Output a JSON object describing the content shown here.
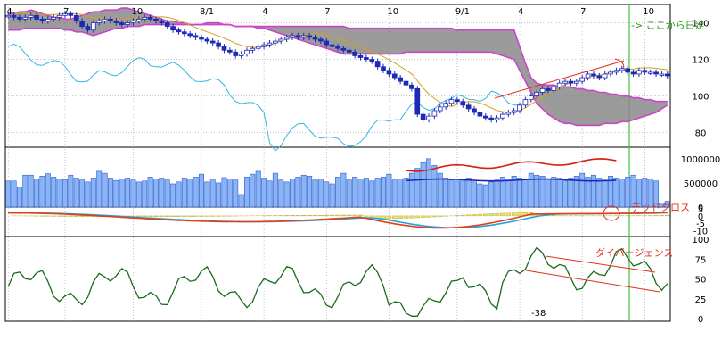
{
  "chart_data": [
    {
      "panel": "price",
      "type": "candlestick",
      "x_ticks": [
        "4",
        "7",
        "10",
        "8/1",
        "4",
        "7",
        "10",
        "9/1",
        "4",
        "7",
        "10"
      ],
      "y_ticks": [
        "140",
        "120",
        "100",
        "80"
      ],
      "ylim": [
        72,
        150
      ],
      "n_bars": 117,
      "close": [
        144,
        143,
        142,
        143,
        144,
        142,
        141,
        142,
        143,
        144,
        145,
        144,
        141,
        138,
        136,
        140,
        141,
        142,
        141,
        140,
        139,
        140,
        141,
        142,
        143,
        142,
        141,
        140,
        138,
        136,
        135,
        134,
        133,
        132,
        131,
        130,
        129,
        127,
        125,
        124,
        122,
        123,
        125,
        126,
        127,
        128,
        129,
        130,
        131,
        132,
        133,
        132,
        133,
        132,
        131,
        130,
        128,
        127,
        126,
        125,
        124,
        122,
        121,
        120,
        119,
        116,
        114,
        112,
        110,
        108,
        106,
        104,
        90,
        87,
        89,
        92,
        94,
        96,
        98,
        97,
        95,
        93,
        91,
        89,
        88,
        87,
        88,
        90,
        91,
        92,
        95,
        98,
        100,
        102,
        104,
        103,
        105,
        107,
        108,
        107,
        108,
        110,
        112,
        111,
        110,
        112,
        113,
        114,
        115,
        113,
        112,
        114,
        113,
        113,
        112,
        112,
        111
      ],
      "cloud_top": [
        145,
        145,
        146,
        146,
        147,
        146,
        145,
        144,
        143,
        143,
        142,
        142,
        143,
        144,
        145,
        146,
        146,
        147,
        147,
        147,
        148,
        148,
        147,
        146,
        145,
        144,
        143,
        142,
        141,
        141,
        140,
        140,
        139,
        139,
        139,
        140,
        140,
        140,
        139,
        139,
        138,
        138,
        138,
        138,
        138,
        138,
        138,
        138,
        138,
        138,
        138,
        138,
        138,
        138,
        138,
        138,
        138,
        138,
        138,
        138,
        137,
        137,
        137,
        137,
        137,
        137,
        137,
        137,
        137,
        137,
        137,
        137,
        137,
        137,
        137,
        137,
        137,
        137,
        137,
        136,
        136,
        136,
        136,
        136,
        136,
        136,
        136,
        136,
        136,
        136,
        127,
        118,
        110,
        107,
        106,
        106,
        106,
        105,
        105,
        105,
        104,
        104,
        103,
        103,
        102,
        102,
        101,
        101,
        100,
        100,
        99,
        99,
        98,
        98,
        97,
        97,
        97
      ],
      "cloud_bottom": [
        136,
        136,
        136,
        137,
        137,
        137,
        137,
        137,
        137,
        137,
        136,
        136,
        135,
        135,
        134,
        133,
        134,
        135,
        136,
        137,
        137,
        138,
        138,
        138,
        139,
        139,
        139,
        139,
        139,
        139,
        139,
        139,
        139,
        139,
        139,
        139,
        139,
        139,
        139,
        139,
        138,
        138,
        138,
        138,
        137,
        137,
        136,
        135,
        134,
        133,
        132,
        131,
        130,
        129,
        128,
        127,
        126,
        125,
        124,
        123,
        123,
        123,
        123,
        123,
        123,
        123,
        123,
        123,
        123,
        123,
        124,
        124,
        124,
        124,
        124,
        124,
        124,
        124,
        124,
        124,
        124,
        124,
        124,
        124,
        124,
        124,
        123,
        122,
        121,
        120,
        114,
        108,
        102,
        96,
        93,
        90,
        88,
        86,
        85,
        85,
        84,
        84,
        84,
        84,
        84,
        85,
        85,
        85,
        86,
        86,
        87,
        88,
        89,
        90,
        91,
        93,
        95
      ],
      "annotations": [
        "-> ここから日足"
      ]
    },
    {
      "panel": "volume",
      "type": "bar",
      "y_ticks": [
        "1000000",
        "500000",
        "0"
      ],
      "ylim": [
        0,
        1200000
      ],
      "values": [
        540000,
        540000,
        420000,
        660000,
        660000,
        580000,
        640000,
        690000,
        620000,
        580000,
        570000,
        660000,
        600000,
        560000,
        520000,
        600000,
        740000,
        700000,
        600000,
        550000,
        580000,
        600000,
        560000,
        520000,
        540000,
        620000,
        580000,
        600000,
        560000,
        480000,
        520000,
        600000,
        580000,
        620000,
        680000,
        520000,
        560000,
        500000,
        610000,
        580000,
        560000,
        260000,
        620000,
        680000,
        740000,
        600000,
        540000,
        700000,
        560000,
        520000,
        580000,
        620000,
        660000,
        640000,
        560000,
        580000,
        520000,
        480000,
        620000,
        700000,
        560000,
        620000,
        580000,
        600000,
        540000,
        600000,
        620000,
        680000,
        560000,
        580000,
        600000,
        700000,
        800000,
        920000,
        1000000,
        860000,
        700000,
        600000,
        560000,
        540000,
        560000,
        600000,
        520000,
        480000,
        460000,
        520000,
        560000,
        620000,
        580000,
        640000,
        600000,
        560000,
        700000,
        660000,
        640000,
        580000,
        620000,
        600000,
        540000,
        600000,
        640000,
        700000,
        620000,
        660000,
        600000,
        560000,
        640000,
        600000,
        580000,
        620000,
        660000,
        560000,
        600000,
        580000,
        540000,
        80000,
        120000
      ],
      "ma_lines": 2
    },
    {
      "panel": "macd",
      "type": "line",
      "y_ticks": [
        "5",
        "0",
        "-5",
        "-10"
      ],
      "ylim": [
        -14,
        6
      ],
      "annotations": [
        "デッドクロス",
        "ダイバージェンス"
      ]
    },
    {
      "panel": "rsi",
      "type": "line",
      "y_ticks": [
        "100",
        "75",
        "50",
        "25",
        "0"
      ],
      "ylim": [
        0,
        100
      ],
      "annotations": [
        "-38"
      ]
    }
  ],
  "colors": {
    "cloud": "#8a8a8a",
    "cloud_edge": "#cc44cc",
    "candle": "#1c2ab8",
    "tenkan": "#d4a020",
    "chikou": "#30b8e0",
    "volume_bar": "#8ab4f8",
    "volume_bar_edge": "#2d5cc8",
    "vol_ma_red": "#d42010",
    "vol_ma_blue": "#1c2ab8",
    "macd_line": "#e04018",
    "signal_line": "#2aa0e0",
    "macd_hist": "#e8e070",
    "rsi_line": "#1a6a1a",
    "annotation": "#e0301e",
    "marker": "#40c040"
  }
}
